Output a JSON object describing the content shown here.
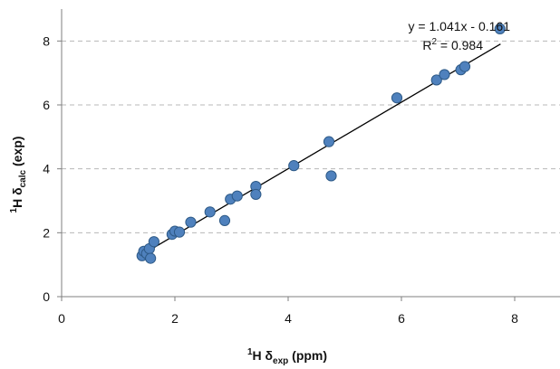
{
  "chart_data": {
    "type": "scatter",
    "xlabel": {
      "prefix_sup": "1",
      "main": "H δ",
      "sub": "exp",
      "suffix": " (ppm)"
    },
    "ylabel": {
      "prefix_sup": "1",
      "main": "H δ",
      "sub": "calc",
      "suffix": " (exp)"
    },
    "xlim": [
      0,
      8.8
    ],
    "ylim": [
      0,
      9
    ],
    "x_ticks": [
      0,
      2,
      4,
      6,
      8
    ],
    "y_ticks": [
      0,
      2,
      4,
      6,
      8
    ],
    "x_tick_labels": [
      "0",
      "2",
      "4",
      "6",
      "8"
    ],
    "y_tick_labels": [
      "0",
      "2",
      "4",
      "6",
      "8"
    ],
    "grid": "horizontal-dashed",
    "marker_color": "#4F81BD",
    "marker_edge": "#2E5A87",
    "trendline": {
      "slope": 1.041,
      "intercept": -0.161,
      "x_range": [
        1.4,
        7.75
      ],
      "color": "#000000"
    },
    "equation_text": "y = 1.041x - 0.161",
    "r2_prefix": "R",
    "r2_sup": "2",
    "r2_suffix": " = 0.984",
    "points": [
      {
        "x": 1.42,
        "y": 1.28
      },
      {
        "x": 1.45,
        "y": 1.42
      },
      {
        "x": 1.5,
        "y": 1.35
      },
      {
        "x": 1.55,
        "y": 1.5
      },
      {
        "x": 1.57,
        "y": 1.2
      },
      {
        "x": 1.63,
        "y": 1.72
      },
      {
        "x": 1.95,
        "y": 1.95
      },
      {
        "x": 2.0,
        "y": 2.05
      },
      {
        "x": 2.08,
        "y": 2.02
      },
      {
        "x": 2.28,
        "y": 2.33
      },
      {
        "x": 2.62,
        "y": 2.65
      },
      {
        "x": 2.88,
        "y": 2.38
      },
      {
        "x": 2.98,
        "y": 3.05
      },
      {
        "x": 3.1,
        "y": 3.15
      },
      {
        "x": 3.43,
        "y": 3.45
      },
      {
        "x": 3.43,
        "y": 3.2
      },
      {
        "x": 4.1,
        "y": 4.1
      },
      {
        "x": 4.72,
        "y": 4.85
      },
      {
        "x": 4.76,
        "y": 3.78
      },
      {
        "x": 5.92,
        "y": 6.22
      },
      {
        "x": 6.62,
        "y": 6.78
      },
      {
        "x": 6.76,
        "y": 6.95
      },
      {
        "x": 7.05,
        "y": 7.1
      },
      {
        "x": 7.12,
        "y": 7.2
      },
      {
        "x": 7.74,
        "y": 8.38
      }
    ]
  }
}
